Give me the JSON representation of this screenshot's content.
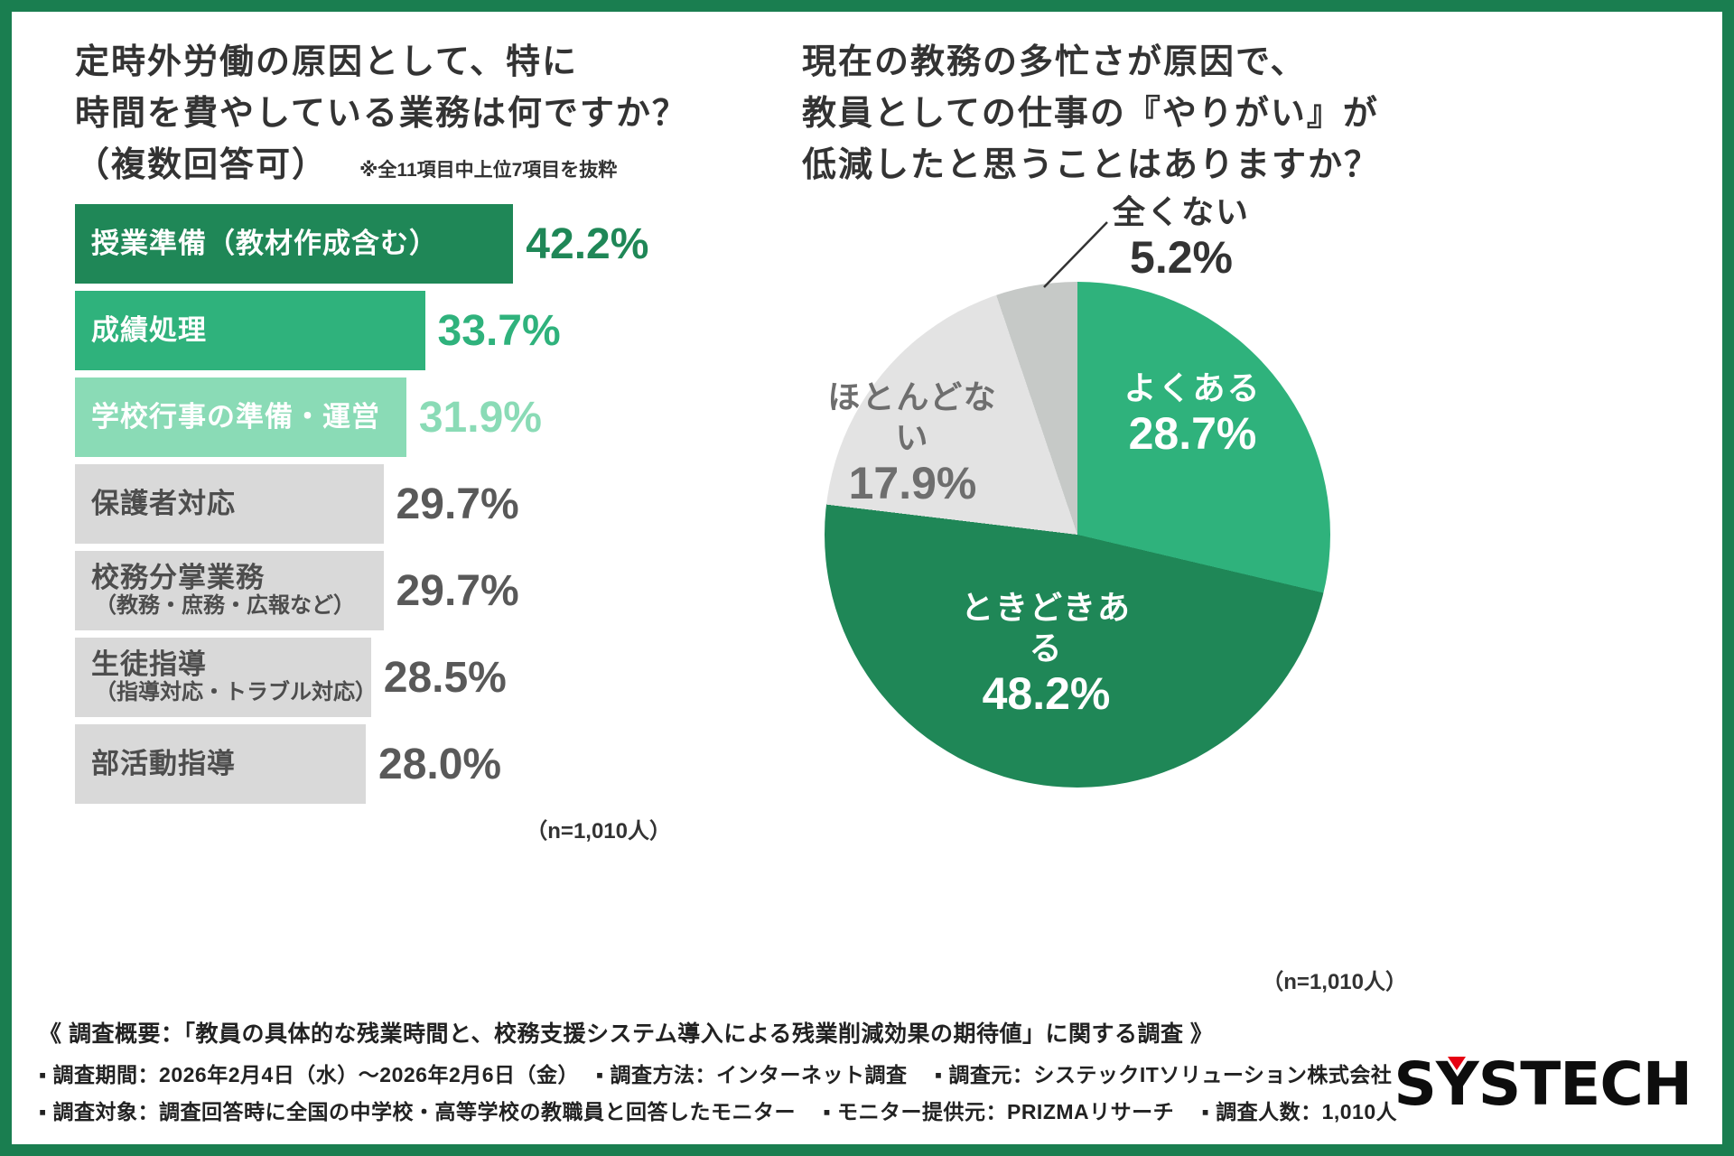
{
  "frame": {
    "border_color": "#1a7e50",
    "background": "#ffffff"
  },
  "chart_data": [
    {
      "type": "bar",
      "title_lines": [
        "定時外労働の原因として、特に",
        "時間を費やしている業務は何ですか？",
        "（複数回答可）"
      ],
      "note": "※全11項目中上位7項目を抜粋",
      "n_label": "（n=1,010人）",
      "xlim": [
        0,
        45
      ],
      "items": [
        {
          "label": "授業準備（教材作成含む）",
          "sublabel": "",
          "value": 42.2,
          "pct": "42.2%",
          "bar_color": "#1f8757",
          "label_color": "#ffffff",
          "pct_color": "#1f8757"
        },
        {
          "label": "成績処理",
          "sublabel": "",
          "value": 33.7,
          "pct": "33.7%",
          "bar_color": "#2fb27c",
          "label_color": "#ffffff",
          "pct_color": "#2fb27c"
        },
        {
          "label": "学校行事の準備・運営",
          "sublabel": "",
          "value": 31.9,
          "pct": "31.9%",
          "bar_color": "#8adbb6",
          "label_color": "#ffffff",
          "pct_color": "#8adbb6"
        },
        {
          "label": "保護者対応",
          "sublabel": "",
          "value": 29.7,
          "pct": "29.7%",
          "bar_color": "#d9d9d9",
          "label_color": "#4d4d4d",
          "pct_color": "#595959"
        },
        {
          "label": "校務分掌業務",
          "sublabel": "（教務・庶務・広報など）",
          "value": 29.7,
          "pct": "29.7%",
          "bar_color": "#d9d9d9",
          "label_color": "#4d4d4d",
          "pct_color": "#595959"
        },
        {
          "label": "生徒指導",
          "sublabel": "（指導対応・トラブル対応）",
          "value": 28.5,
          "pct": "28.5%",
          "bar_color": "#d9d9d9",
          "label_color": "#4d4d4d",
          "pct_color": "#595959"
        },
        {
          "label": "部活動指導",
          "sublabel": "",
          "value": 28.0,
          "pct": "28.0%",
          "bar_color": "#d9d9d9",
          "label_color": "#4d4d4d",
          "pct_color": "#595959"
        }
      ]
    },
    {
      "type": "pie",
      "title_lines": [
        "現在の教務の多忙さが原因で、",
        "教員としての仕事の『やりがい』が",
        "低減したと思うことはありますか？"
      ],
      "n_label": "（n=1,010人）",
      "legend_position": "on-slice",
      "slices": [
        {
          "label": "よくある",
          "value": 28.7,
          "pct": "28.7%",
          "color": "#2fb27c",
          "label_color": "#ffffff"
        },
        {
          "label": "ときどきある",
          "value": 48.2,
          "pct": "48.2%",
          "color": "#1f8757",
          "label_color": "#ffffff"
        },
        {
          "label": "ほとんどない",
          "value": 17.9,
          "pct": "17.9%",
          "color": "#e3e3e3",
          "label_color": "#6e6e6e"
        },
        {
          "label": "全くない",
          "value": 5.2,
          "pct": "5.2%",
          "color": "#c6c9c7",
          "label_color": "#333333"
        }
      ]
    }
  ],
  "footer": {
    "summary": "《 調査概要：「教員の具体的な残業時間と、校務支援システム導入による残業削減効果の期待値」に関する調査 》",
    "line2": "▪ 調査期間：2026年2月4日（水）〜2026年2月6日（金）　 ▪ 調査方法：インターネット調査　 ▪ 調査元：システックITソリューション株式会社",
    "line3": "▪ 調査対象：調査回答時に全国の中学校・高等学校の教職員と回答したモニター　 ▪ モニター提供元：PRIZMAリサーチ　 ▪ 調査人数：1,010人",
    "logo_pre": "S",
    "logo_y": "Y",
    "logo_post": "STECH"
  }
}
